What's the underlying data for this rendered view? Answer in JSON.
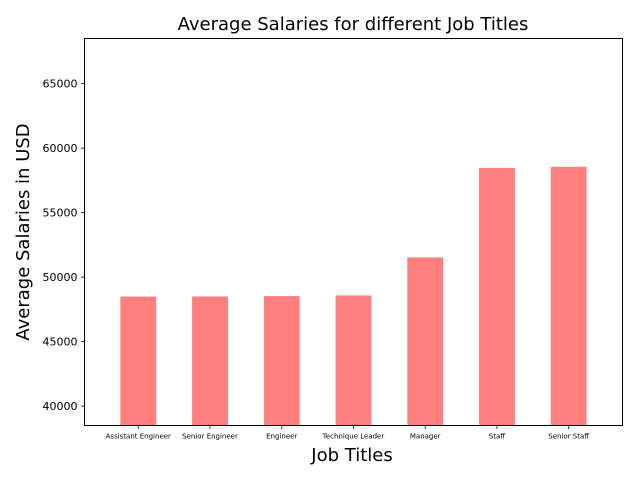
{
  "chart_data": {
    "type": "bar",
    "title": "Average Salaries for different Job Titles",
    "xlabel": "Job Titles",
    "ylabel": "Average Salaries in USD",
    "categories": [
      "Assistant Engineer",
      "Senior Engineer",
      "Engineer",
      "Technique Leader",
      "Manager",
      "Staff",
      "Senior Staff"
    ],
    "values": [
      48490,
      48500,
      48530,
      48580,
      51530,
      58470,
      58550
    ],
    "ylim": [
      38500,
      68500
    ],
    "yticks": [
      40000,
      45000,
      50000,
      55000,
      60000,
      65000
    ],
    "grid": false,
    "bar_color": "#ff7f7f"
  }
}
